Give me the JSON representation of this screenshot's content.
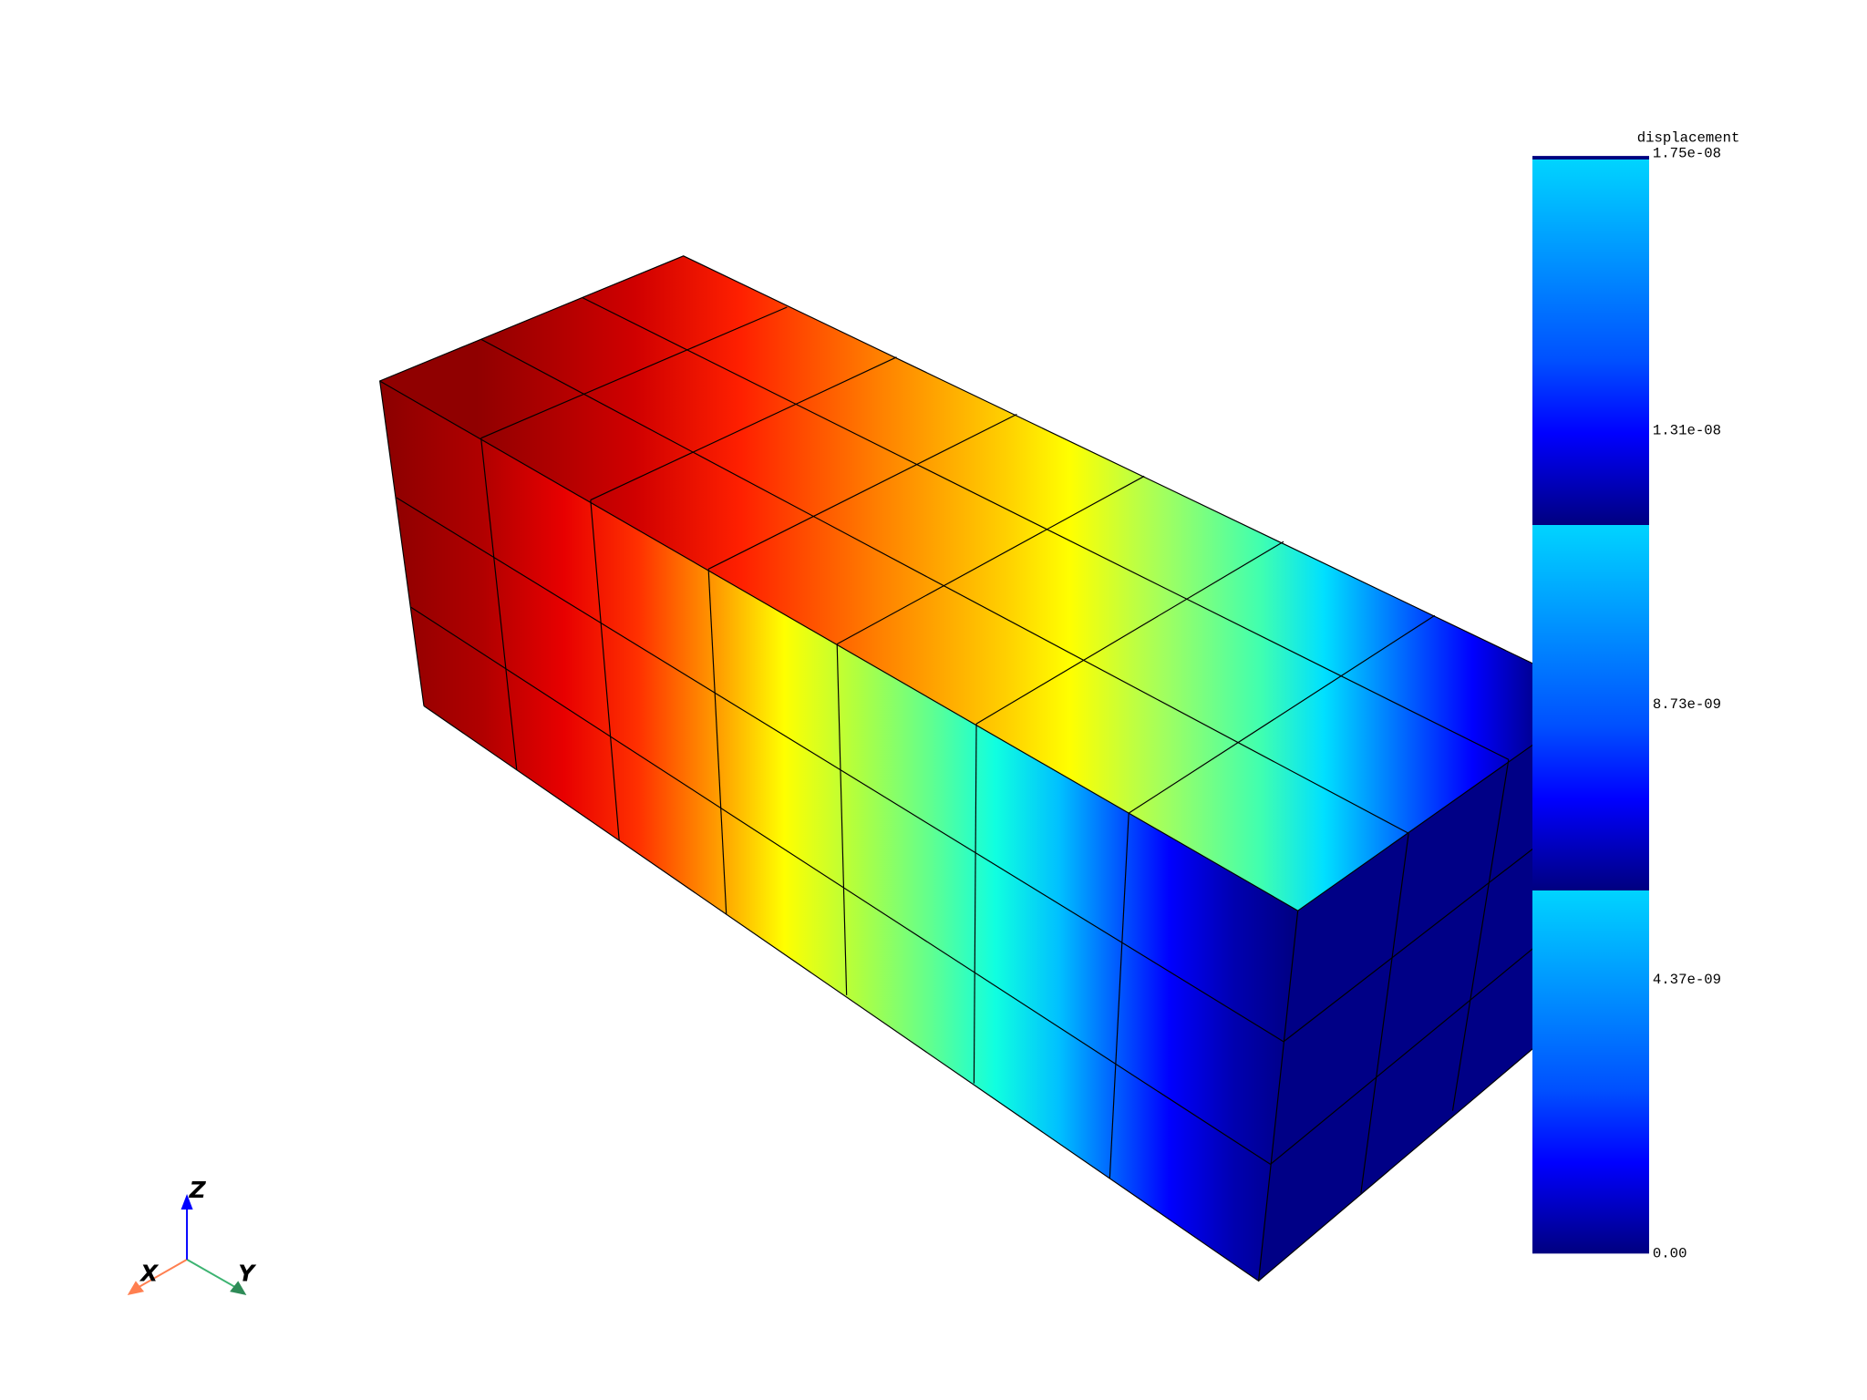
{
  "scalar_bar": {
    "title": "displacement",
    "labels": [
      "1.75e-08",
      "1.31e-08",
      "8.73e-09",
      "4.37e-09",
      "0.00"
    ],
    "range": [
      0.0,
      1.75e-08
    ],
    "colors": {
      "top": "#00d4ff",
      "mid": "#0000ff",
      "bottom": "#000080"
    }
  },
  "mesh": {
    "cells_along_length": 7,
    "cells_across": 3,
    "cells_height": 3,
    "colormap": "jet",
    "edge_color": "#000000"
  },
  "axes_widget": {
    "x_label": "X",
    "y_label": "Y",
    "z_label": "Z",
    "x_color": "#ff7f50",
    "y_color": "#3cb371",
    "z_color": "#0000ff"
  }
}
